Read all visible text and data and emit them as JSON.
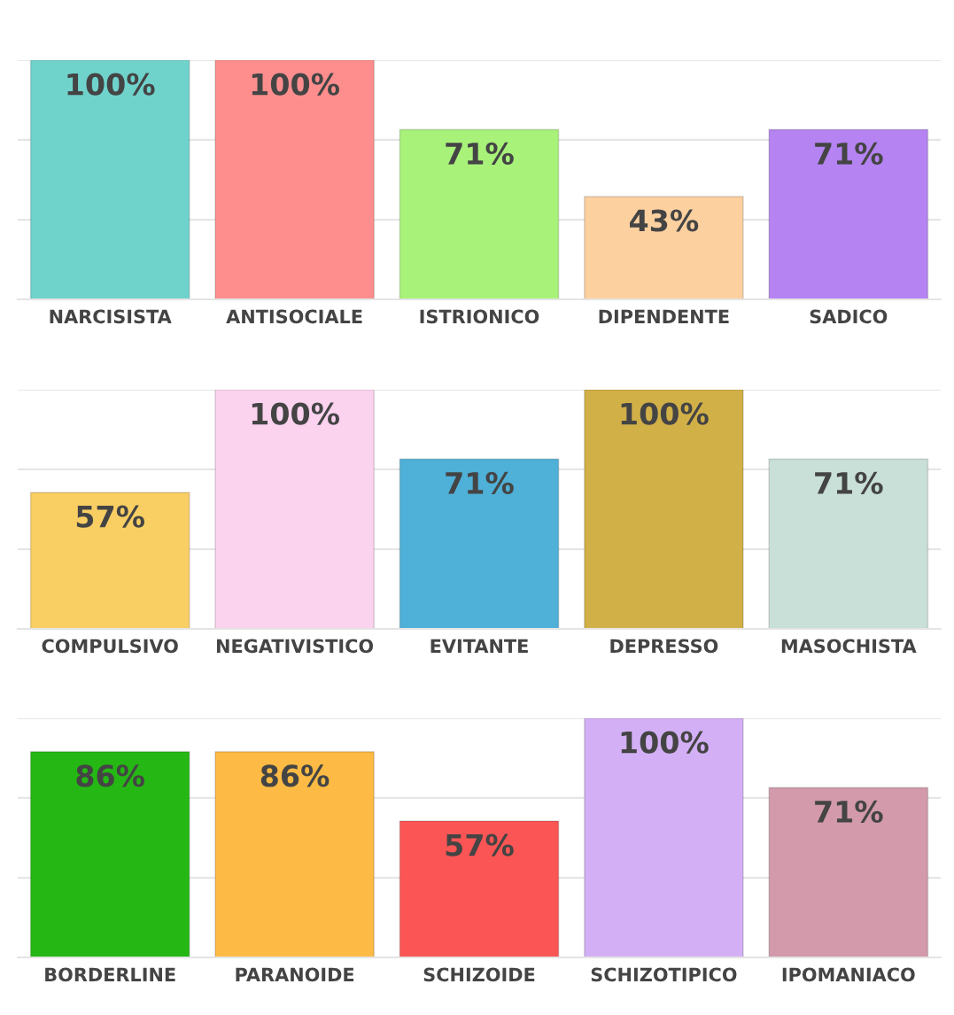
{
  "chart_data": [
    {
      "type": "bar",
      "categories": [
        "NARCISISTA",
        "ANTISOCIALE",
        "ISTRIONICO",
        "DIPENDENTE",
        "SADICO"
      ],
      "values": [
        100,
        100,
        71,
        43,
        71
      ],
      "value_labels": [
        "100%",
        "100%",
        "71%",
        "43%",
        "71%"
      ],
      "colors": [
        "#6fd3cc",
        "#fe8e8e",
        "#a8f27a",
        "#fdd0a0",
        "#b583f2"
      ],
      "ylim": [
        0,
        100
      ],
      "tick_labels": "x",
      "ref_lines": [
        {
          "axis": "y",
          "value": 33.3,
          "color": "#e6e6e6"
        },
        {
          "axis": "y",
          "value": 66.7,
          "color": "#e6e6e6"
        },
        {
          "axis": "y",
          "value": 100,
          "color": "#e6e6e6"
        }
      ]
    },
    {
      "type": "bar",
      "categories": [
        "COMPULSIVO",
        "NEGATIVISTICO",
        "EVITANTE",
        "DEPRESSO",
        "MASOCHISTA"
      ],
      "values": [
        57,
        100,
        71,
        100,
        71
      ],
      "value_labels": [
        "57%",
        "100%",
        "71%",
        "100%",
        "71%"
      ],
      "colors": [
        "#f9cf64",
        "#fbd3ef",
        "#4fb0d8",
        "#d2b048",
        "#c9e0d8"
      ],
      "ylim": [
        0,
        100
      ],
      "tick_labels": "x",
      "ref_lines": [
        {
          "axis": "y",
          "value": 33.3,
          "color": "#e6e6e6"
        },
        {
          "axis": "y",
          "value": 66.7,
          "color": "#e6e6e6"
        },
        {
          "axis": "y",
          "value": 100,
          "color": "#e6e6e6"
        }
      ]
    },
    {
      "type": "bar",
      "categories": [
        "BORDERLINE",
        "PARANOIDE",
        "SCHIZOIDE",
        "SCHIZOTIPICO",
        "IPOMANIACO"
      ],
      "values": [
        86,
        86,
        57,
        100,
        71
      ],
      "value_labels": [
        "86%",
        "86%",
        "57%",
        "100%",
        "71%"
      ],
      "colors": [
        "#25b814",
        "#fdbb45",
        "#fc5555",
        "#d3b0f5",
        "#d29aab"
      ],
      "ylim": [
        0,
        100
      ],
      "tick_labels": "x",
      "ref_lines": [
        {
          "axis": "y",
          "value": 33.3,
          "color": "#e6e6e6"
        },
        {
          "axis": "y",
          "value": 66.7,
          "color": "#e6e6e6"
        },
        {
          "axis": "y",
          "value": 100,
          "color": "#e6e6e6"
        }
      ]
    }
  ]
}
